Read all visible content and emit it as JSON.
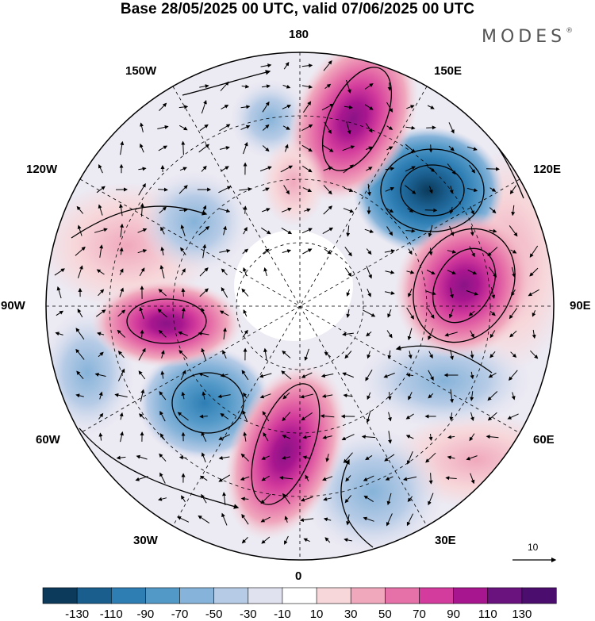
{
  "title": "Base 28/05/2025 00 UTC, valid 07/06/2025 00 UTC",
  "brand": {
    "name": "MODES",
    "mark": "®"
  },
  "map": {
    "projection": "north-polar-stereographic",
    "field": "anomaly",
    "longitude_labels": {
      "top": "180",
      "top_right": "150E",
      "upper_right": "120E",
      "right": "90E",
      "lower_right": "60E",
      "bottom_right": "30E",
      "bottom": "0",
      "bottom_left": "30W",
      "lower_left": "60W",
      "left": "90W",
      "upper_left": "120W",
      "top_left": "150W"
    },
    "anomaly_centers": [
      {
        "sign": "negative",
        "level": -130,
        "location": "East Siberia (~120E)"
      },
      {
        "sign": "positive",
        "level": 110,
        "location": "Central Siberia (~90E)"
      },
      {
        "sign": "positive",
        "level": 90,
        "location": "Bering Sea (~165E)"
      },
      {
        "sign": "positive",
        "level": 110,
        "location": "Canada (~90W)"
      },
      {
        "sign": "negative",
        "level": -90,
        "location": "NW Atlantic (~55W)"
      },
      {
        "sign": "positive",
        "level": 110,
        "location": "N Atlantic (~20W)"
      },
      {
        "sign": "negative",
        "level": -50,
        "location": "NE Pacific (~140W)"
      },
      {
        "sign": "negative",
        "level": -30,
        "location": "Europe (~20E)"
      }
    ]
  },
  "reference_vector": {
    "value": "10"
  },
  "colorbar": {
    "colors": [
      "#0b3a5a",
      "#1a5e8e",
      "#2e7eb4",
      "#5399c8",
      "#86b3d9",
      "#b6cbe6",
      "#e1e2f0",
      "#ffffff",
      "#f7d7da",
      "#f0a8bd",
      "#e670a8",
      "#d33c9c",
      "#a8168f",
      "#6a137f",
      "#4b0e6e"
    ],
    "labels": [
      "-130",
      "-110",
      "-90",
      "-70",
      "-50",
      "-30",
      "-10",
      "10",
      "30",
      "50",
      "70",
      "90",
      "110",
      "130"
    ]
  }
}
